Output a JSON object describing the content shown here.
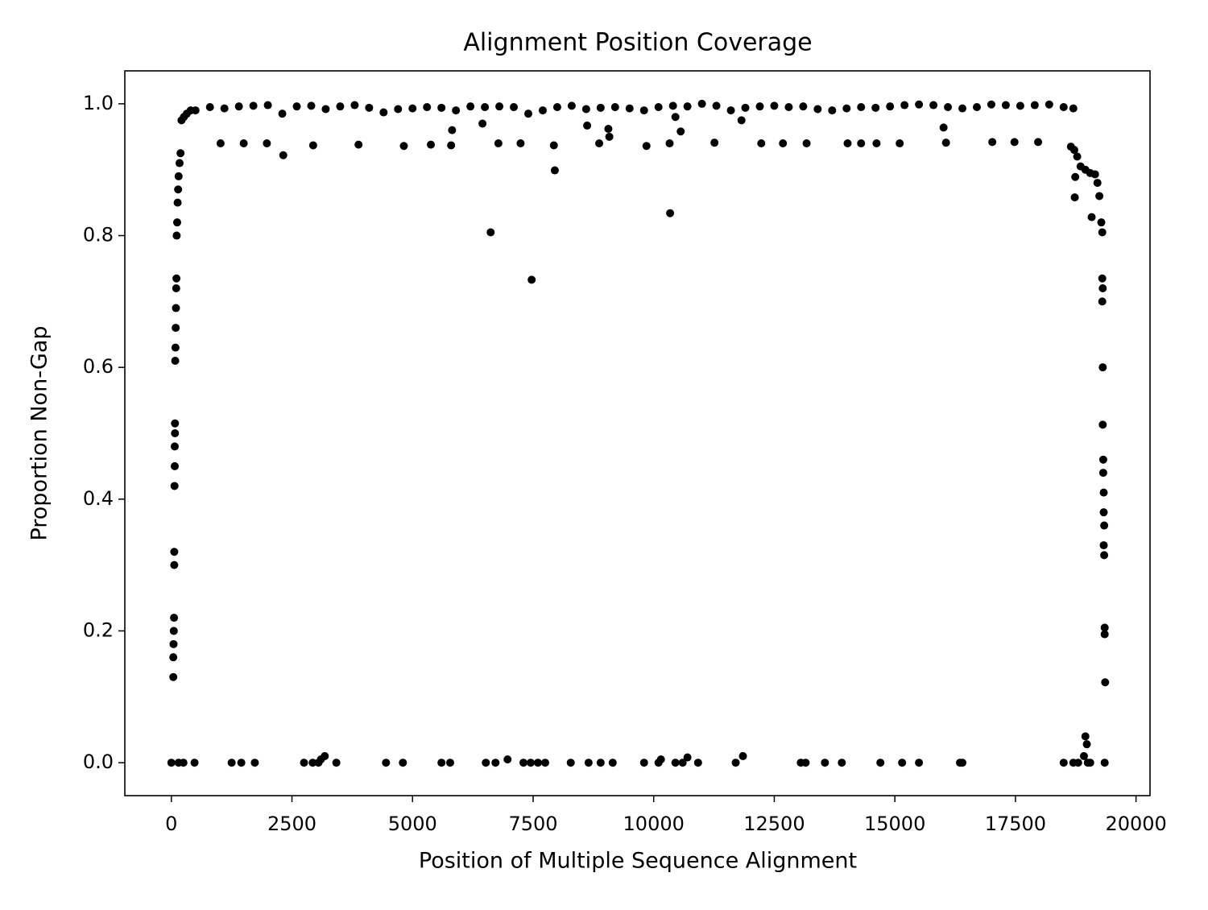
{
  "chart_data": {
    "type": "scatter",
    "title": "Alignment Position Coverage",
    "x_label": "Position of Multiple Sequence Alignment",
    "y_label": "Proportion Non-Gap",
    "color": "#000000",
    "xlim": [
      -965,
      20290
    ],
    "ylim": [
      -0.05,
      1.05
    ],
    "xticks": [
      0,
      2500,
      5000,
      7500,
      10000,
      12500,
      15000,
      17500,
      20000
    ],
    "yticks": [
      {
        "value": 0,
        "label": "0.0"
      },
      0.2,
      0.4,
      0.6,
      0.8,
      {
        "value": 1,
        "label": "1.0"
      }
    ],
    "x": [
      40,
      40,
      45,
      50,
      55,
      60,
      60,
      65,
      70,
      70,
      75,
      75,
      80,
      85,
      90,
      95,
      100,
      105,
      110,
      120,
      130,
      140,
      150,
      170,
      190,
      210,
      260,
      320,
      400,
      500,
      800,
      1100,
      1400,
      1700,
      2000,
      2300,
      2600,
      2900,
      3200,
      3500,
      3800,
      4100,
      4400,
      4700,
      5000,
      5300,
      5600,
      5900,
      6200,
      6500,
      6800,
      7100,
      7400,
      7700,
      8000,
      8300,
      8600,
      8900,
      9200,
      9500,
      9800,
      10100,
      10400,
      10700,
      11000,
      11300,
      11600,
      11900,
      12200,
      12500,
      12800,
      13100,
      13400,
      13700,
      14000,
      14300,
      14600,
      14900,
      15200,
      15500,
      15800,
      16100,
      16400,
      16700,
      17000,
      17300,
      17600,
      17900,
      18200,
      18500,
      18700,
      1020,
      1500,
      1980,
      2320,
      2940,
      3880,
      4820,
      5380,
      5800,
      5820,
      6780,
      7240,
      7930,
      7950,
      8870,
      9060,
      9080,
      9850,
      10330,
      10340,
      10450,
      10560,
      11260,
      11820,
      12230,
      12680,
      13170,
      14020,
      14300,
      14620,
      15100,
      16010,
      16060,
      17020,
      17480,
      17970,
      6620,
      7470,
      6450,
      8620,
      18650,
      18720,
      18780,
      18850,
      18950,
      19050,
      19150,
      19200,
      19240,
      18740,
      18730,
      19080,
      19280,
      19300,
      19300,
      19310,
      19300,
      19310,
      19310,
      19320,
      19320,
      19330,
      19330,
      19340,
      19330,
      19340,
      19350,
      19350,
      19360,
      18950,
      18980,
      18920,
      0,
      150,
      250,
      480,
      1250,
      1450,
      1730,
      2750,
      2930,
      3050,
      3100,
      3180,
      3420,
      4450,
      4800,
      5600,
      5780,
      6520,
      6720,
      6970,
      7300,
      7450,
      7600,
      7750,
      8280,
      8650,
      8900,
      9150,
      9800,
      10100,
      10150,
      10450,
      10600,
      10700,
      10920,
      11700,
      11850,
      13050,
      13150,
      13550,
      13900,
      14700,
      15150,
      15500,
      16350,
      16400,
      18500,
      18700,
      18800,
      19000,
      19050,
      19350
    ],
    "values": [
      0.13,
      0.16,
      0.18,
      0.2,
      0.22,
      0.3,
      0.32,
      0.42,
      0.45,
      0.48,
      0.5,
      0.515,
      0.61,
      0.63,
      0.66,
      0.69,
      0.72,
      0.735,
      0.8,
      0.82,
      0.85,
      0.87,
      0.89,
      0.91,
      0.925,
      0.975,
      0.98,
      0.985,
      0.99,
      0.99,
      0.995,
      0.993,
      0.996,
      0.997,
      0.998,
      0.985,
      0.996,
      0.997,
      0.992,
      0.996,
      0.998,
      0.994,
      0.987,
      0.992,
      0.993,
      0.995,
      0.994,
      0.99,
      0.996,
      0.995,
      0.996,
      0.995,
      0.985,
      0.99,
      0.995,
      0.997,
      0.992,
      0.994,
      0.995,
      0.993,
      0.99,
      0.995,
      0.997,
      0.996,
      1.0,
      0.997,
      0.99,
      0.994,
      0.996,
      0.997,
      0.995,
      0.996,
      0.992,
      0.99,
      0.993,
      0.995,
      0.994,
      0.996,
      0.998,
      0.999,
      0.998,
      0.995,
      0.993,
      0.995,
      0.999,
      0.998,
      0.997,
      0.998,
      0.999,
      0.995,
      0.993,
      0.94,
      0.94,
      0.94,
      0.922,
      0.937,
      0.938,
      0.936,
      0.938,
      0.937,
      0.96,
      0.94,
      0.94,
      0.937,
      0.899,
      0.94,
      0.962,
      0.95,
      0.936,
      0.94,
      0.834,
      0.98,
      0.958,
      0.941,
      0.975,
      0.94,
      0.94,
      0.94,
      0.94,
      0.94,
      0.94,
      0.94,
      0.964,
      0.941,
      0.942,
      0.942,
      0.942,
      0.805,
      0.733,
      0.97,
      0.967,
      0.935,
      0.93,
      0.92,
      0.905,
      0.9,
      0.895,
      0.893,
      0.88,
      0.86,
      0.889,
      0.858,
      0.828,
      0.82,
      0.805,
      0.735,
      0.72,
      0.7,
      0.6,
      0.513,
      0.46,
      0.44,
      0.41,
      0.38,
      0.36,
      0.33,
      0.315,
      0.205,
      0.195,
      0.122,
      0.04,
      0.028,
      0.01,
      0,
      0,
      0,
      0,
      0,
      0,
      0,
      0,
      0,
      0,
      0.005,
      0.01,
      0,
      0,
      0,
      0,
      0,
      0,
      0,
      0.005,
      0,
      0,
      0,
      0,
      0,
      0,
      0,
      0,
      0,
      0,
      0.005,
      0,
      0,
      0.008,
      0,
      0,
      0.01,
      0,
      0,
      0,
      0,
      0,
      0,
      0,
      0,
      0,
      0,
      0,
      0,
      0,
      0,
      0
    ]
  }
}
